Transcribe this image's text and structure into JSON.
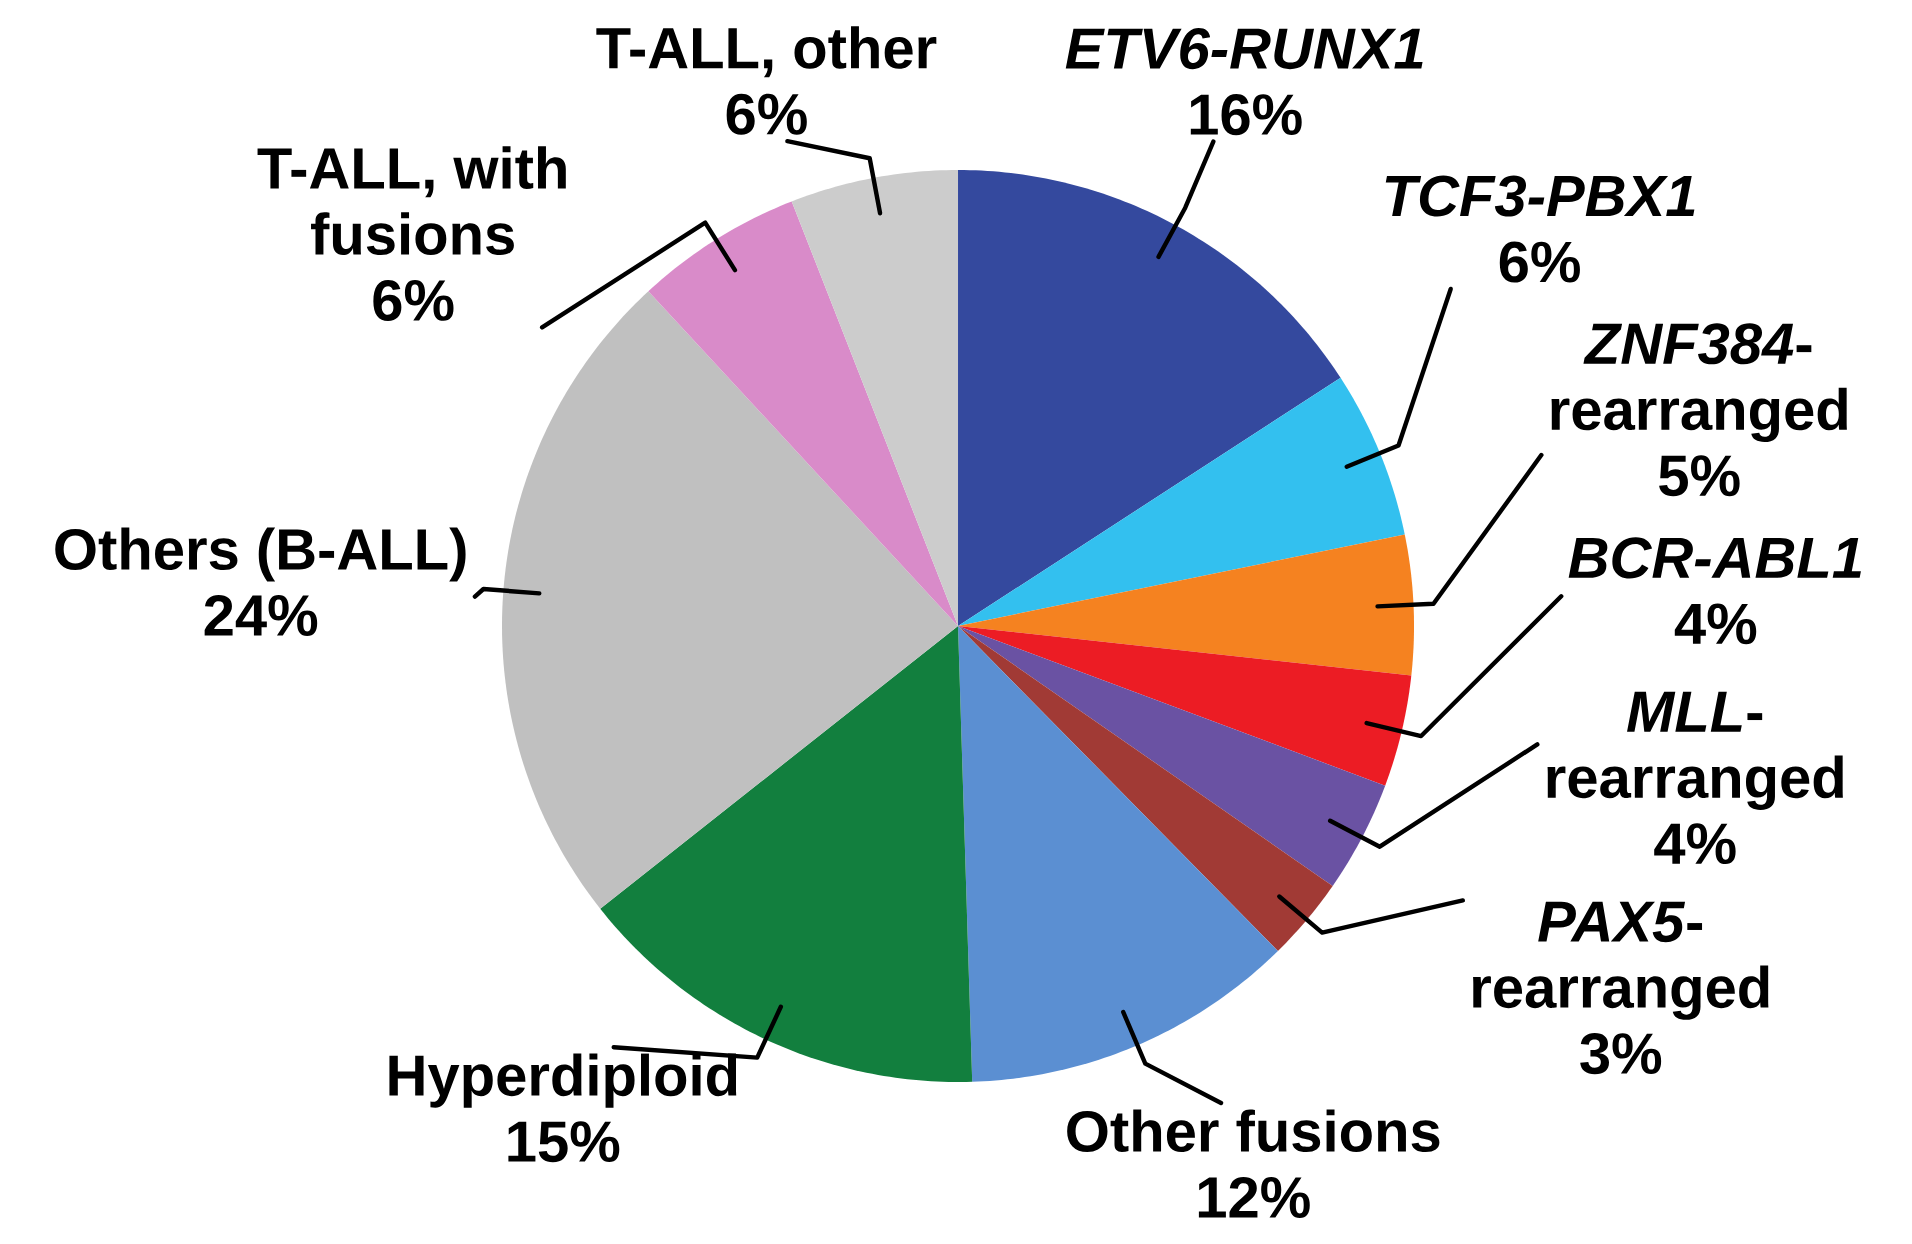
{
  "chart_data": {
    "type": "pie",
    "categories": [
      "*ETV6-RUNX1*",
      "*TCF3-PBX1*",
      "*ZNF384*-rearranged",
      "*BCR-ABL1*",
      "*MLL*-rearranged",
      "*PAX5*-rearranged",
      "Other fusions",
      "Hyperdiploid",
      "Others (B-ALL)",
      "T-ALL, with fusions",
      "T-ALL, other"
    ],
    "values": [
      16,
      6,
      5,
      4,
      4,
      3,
      12,
      15,
      24,
      6,
      6
    ],
    "value_labels": [
      "16%",
      "6%",
      "5%",
      "4%",
      "4%",
      "3%",
      "12%",
      "15%",
      "24%",
      "6%",
      "6%"
    ],
    "colors": [
      "#34499e",
      "#33c0ef",
      "#f58220",
      "#ec1c24",
      "#6a52a3",
      "#a13a35",
      "#5b8fd2",
      "#127f3e",
      "#c0c0c0",
      "#d98bc9",
      "#cccccc"
    ]
  }
}
